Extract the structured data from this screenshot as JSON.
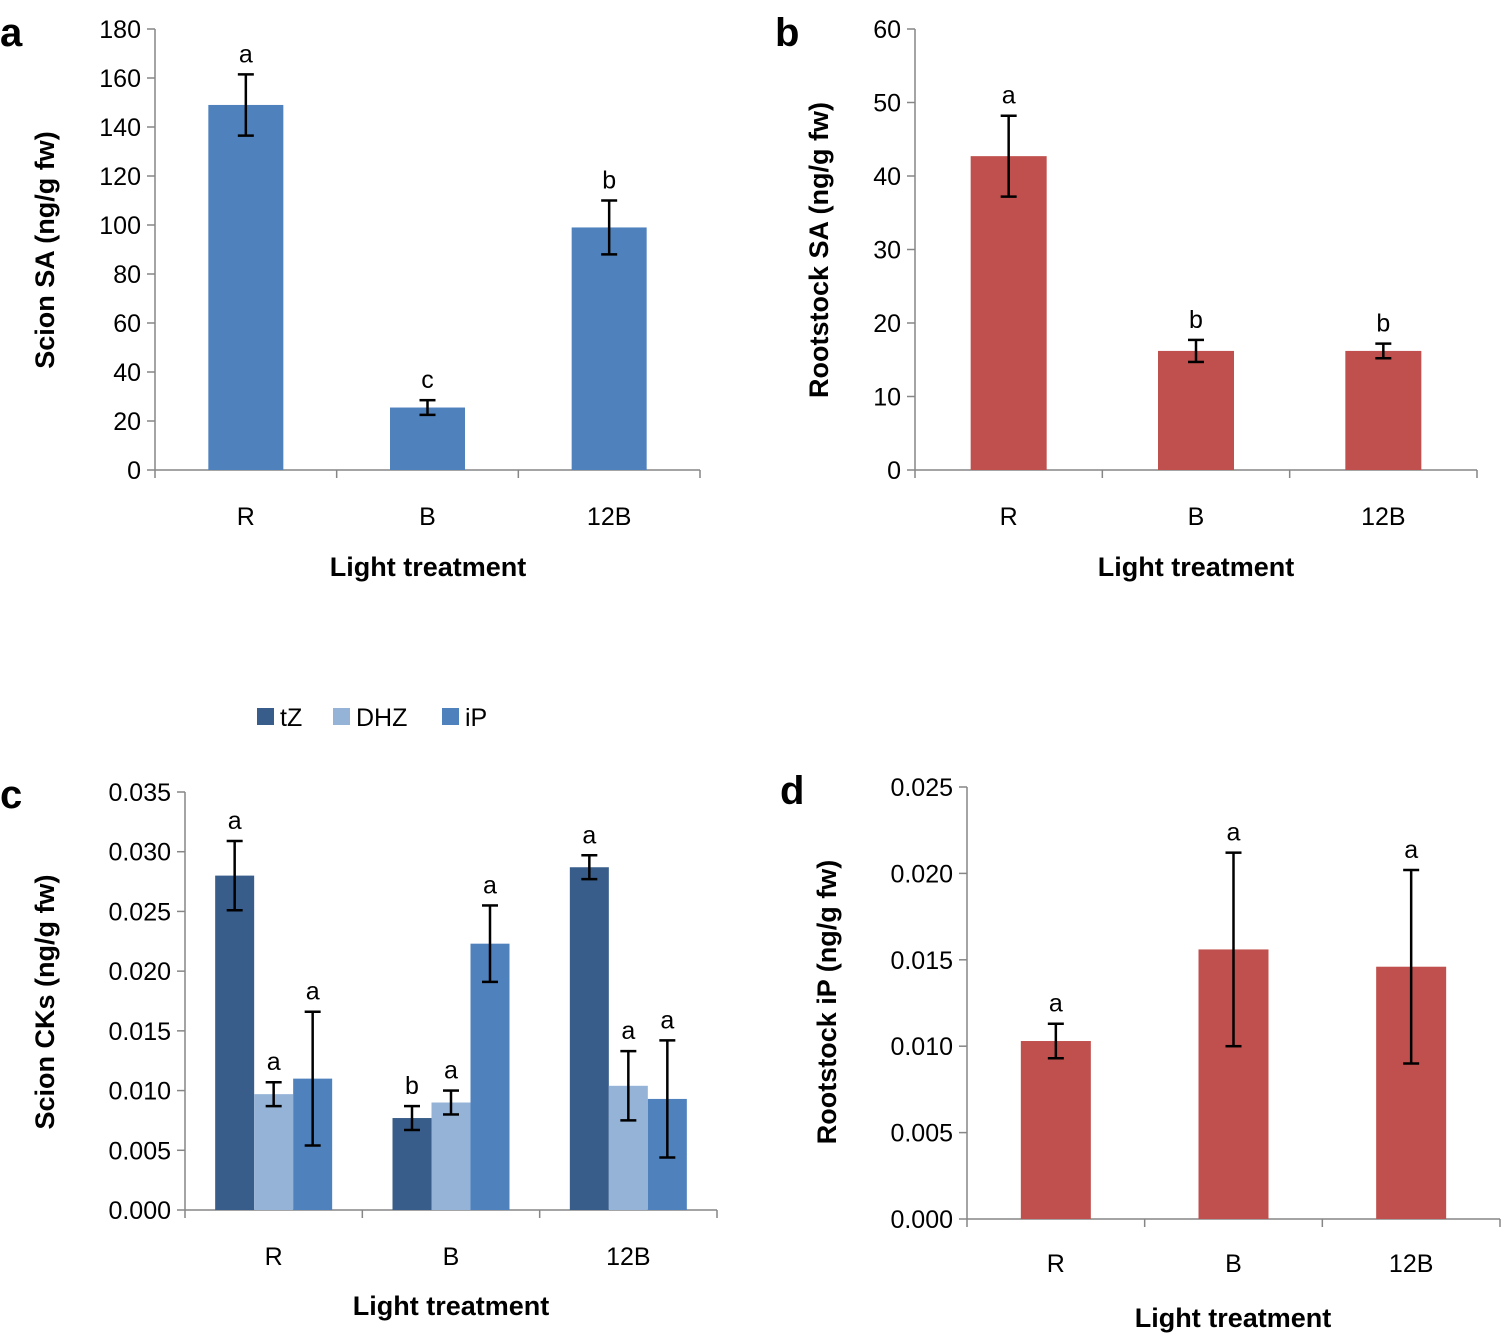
{
  "chart_data": [
    {
      "panel": "a",
      "type": "bar",
      "categories": [
        "R",
        "B",
        "12B"
      ],
      "series": [
        {
          "name": "Scion SA",
          "color": "#4F81BD",
          "values": [
            149,
            25.5,
            99
          ],
          "errors": [
            12.5,
            3,
            11
          ],
          "letters": [
            "a",
            "c",
            "b"
          ]
        }
      ],
      "xlabel": "Light treatment",
      "ylabel": "Scion SA (ng/g fw)",
      "ylim": [
        0,
        180
      ],
      "yticks": [
        "0",
        "20",
        "40",
        "60",
        "80",
        "100",
        "120",
        "140",
        "160",
        "180"
      ],
      "grid": false
    },
    {
      "panel": "b",
      "type": "bar",
      "categories": [
        "R",
        "B",
        "12B"
      ],
      "series": [
        {
          "name": "Rootstock SA",
          "color": "#C0504D",
          "values": [
            42.7,
            16.2,
            16.2
          ],
          "errors": [
            5.5,
            1.5,
            1
          ],
          "letters": [
            "a",
            "b",
            "b"
          ]
        }
      ],
      "xlabel": "Light treatment",
      "ylabel": "Rootstock SA (ng/g fw)",
      "ylim": [
        0,
        60
      ],
      "yticks": [
        "0",
        "10",
        "20",
        "30",
        "40",
        "50",
        "60"
      ],
      "grid": false
    },
    {
      "panel": "c",
      "type": "bar",
      "categories": [
        "R",
        "B",
        "12B"
      ],
      "series": [
        {
          "name": "tZ",
          "color": "#385D8A",
          "values": [
            0.028,
            0.0077,
            0.0287
          ],
          "errors": [
            0.0029,
            0.001,
            0.001
          ],
          "letters": [
            "a",
            "b",
            "a"
          ]
        },
        {
          "name": "DHZ",
          "color": "#95B3D7",
          "values": [
            0.0097,
            0.009,
            0.0104
          ],
          "errors": [
            0.001,
            0.001,
            0.0029
          ],
          "letters": [
            "a",
            "a",
            "a"
          ]
        },
        {
          "name": "iP",
          "color": "#4F81BD",
          "values": [
            0.011,
            0.0223,
            0.0093
          ],
          "errors": [
            0.0056,
            0.0032,
            0.0049
          ],
          "letters": [
            "a",
            "a",
            "a"
          ]
        }
      ],
      "xlabel": "Light treatment",
      "ylabel": "Scion CKs (ng/g fw)",
      "ylim": [
        0,
        0.035
      ],
      "yticks": [
        "0.000",
        "0.005",
        "0.010",
        "0.015",
        "0.020",
        "0.025",
        "0.030",
        "0.035"
      ],
      "legend": "top",
      "grid": false
    },
    {
      "panel": "d",
      "type": "bar",
      "categories": [
        "R",
        "B",
        "12B"
      ],
      "series": [
        {
          "name": "Rootstock iP",
          "color": "#C0504D",
          "values": [
            0.0103,
            0.0156,
            0.0146
          ],
          "errors": [
            0.001,
            0.0056,
            0.0056
          ],
          "letters": [
            "a",
            "a",
            "a"
          ]
        }
      ],
      "xlabel": "Light treatment",
      "ylabel": "Rootstock iP (ng/g fw)",
      "ylim": [
        0,
        0.025
      ],
      "yticks": [
        "0.000",
        "0.005",
        "0.010",
        "0.015",
        "0.020",
        "0.025"
      ],
      "grid": false
    }
  ]
}
